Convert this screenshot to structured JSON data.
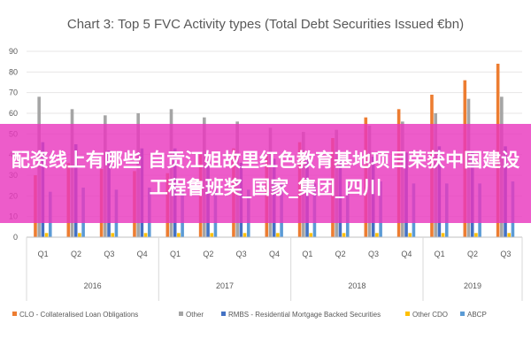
{
  "banner": {
    "text": "配资线上有哪些 自贡江姐故里红色教育基地项目荣获中国建设工程鲁班奖_国家_集团_四川"
  },
  "colors": {
    "clo": "#ED7D31",
    "other": "#A5A5A5",
    "rmbs": "#4472C4",
    "other_cdo": "#FFC000",
    "abcp": "#5B9BD5",
    "grid": "#E7E6E6"
  },
  "chart_data": {
    "type": "bar",
    "title": "Chart 3: Top 5 FVC Activity types (Total Debt Securities Issued €bn)",
    "ylim": [
      0,
      90
    ],
    "yticks": [
      0,
      10,
      20,
      30,
      40,
      50,
      60,
      70,
      80,
      90
    ],
    "grid": true,
    "legend_position": "bottom",
    "categories": [
      "Q1",
      "Q2",
      "Q3",
      "Q4",
      "Q1",
      "Q2",
      "Q3",
      "Q4",
      "Q1",
      "Q2",
      "Q3",
      "Q4",
      "Q1",
      "Q2",
      "Q3"
    ],
    "groups": [
      {
        "label": "2016",
        "span": 4
      },
      {
        "label": "2017",
        "span": 4
      },
      {
        "label": "2018",
        "span": 4
      },
      {
        "label": "2019",
        "span": 3
      }
    ],
    "series": [
      {
        "name": "CLO - Collateralised Loan Obligations",
        "color_key": "clo",
        "values": [
          30,
          36,
          33,
          32,
          31,
          40,
          43,
          40,
          46,
          48,
          58,
          62,
          69,
          76,
          84
        ]
      },
      {
        "name": "Other",
        "color_key": "other",
        "values": [
          68,
          62,
          59,
          60,
          62,
          58,
          56,
          53,
          51,
          52,
          54,
          56,
          60,
          67,
          68
        ]
      },
      {
        "name": "RMBS - Residential Mortgage Backed Securities",
        "color_key": "rmbs",
        "values": [
          46,
          45,
          42,
          43,
          43,
          36,
          36,
          38,
          40,
          38,
          39,
          41,
          44,
          42,
          44
        ]
      },
      {
        "name": "Other CDO",
        "color_key": "other_cdo",
        "values": [
          2,
          2,
          2,
          2,
          2,
          2,
          2,
          2,
          2,
          2,
          2,
          2,
          2,
          2,
          2
        ]
      },
      {
        "name": "ABCP",
        "color_key": "abcp",
        "values": [
          22,
          24,
          23,
          24,
          22,
          25,
          23,
          26,
          26,
          25,
          27,
          26,
          26,
          26,
          27
        ]
      }
    ]
  }
}
